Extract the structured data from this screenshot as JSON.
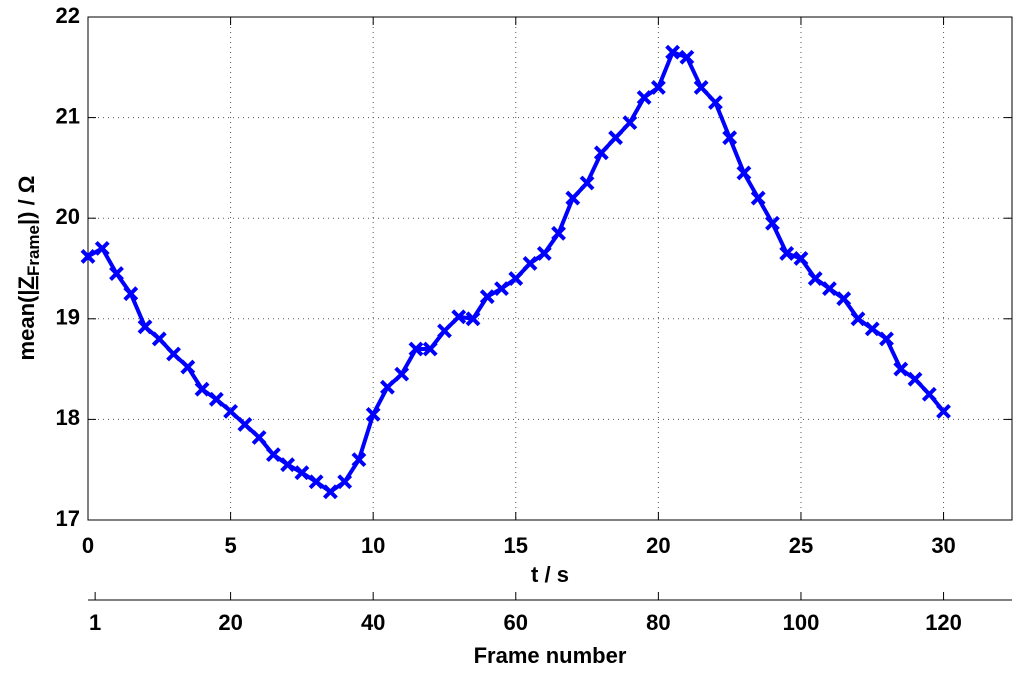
{
  "chart_data": {
    "type": "line",
    "x_label": "t / s",
    "y_label": {
      "start": "mean(|",
      "z": "Z",
      "sub": "Frame",
      "end": "|) / Ω"
    },
    "x2_label": "Frame number",
    "xlim": [
      0,
      32.4
    ],
    "xticks": [
      0,
      5,
      10,
      15,
      20,
      25,
      30
    ],
    "x2lim": [
      0,
      129.6
    ],
    "x2ticks": [
      1,
      20,
      40,
      60,
      80,
      100,
      120
    ],
    "ylim": [
      17,
      22
    ],
    "yticks": [
      17,
      18,
      19,
      20,
      21,
      22
    ],
    "grid": true,
    "x": [
      0,
      0.5,
      1,
      1.5,
      2,
      2.5,
      3,
      3.5,
      4,
      4.5,
      5,
      5.5,
      6,
      6.5,
      7,
      7.5,
      8,
      8.5,
      9,
      9.5,
      10,
      10.5,
      11,
      11.5,
      12,
      12.5,
      13,
      13.5,
      14,
      14.5,
      15,
      15.5,
      16,
      16.5,
      17,
      17.5,
      18,
      18.5,
      19,
      19.5,
      20,
      20.5,
      21,
      21.5,
      22,
      22.5,
      23,
      23.5,
      24,
      24.5,
      25,
      25.5,
      26,
      26.5,
      27,
      27.5,
      28,
      28.5,
      29,
      29.5,
      30
    ],
    "series": [
      {
        "color": "#0000ff",
        "values": [
          19.62,
          19.7,
          19.45,
          19.25,
          18.92,
          18.8,
          18.65,
          18.52,
          18.3,
          18.2,
          18.08,
          17.95,
          17.82,
          17.65,
          17.55,
          17.47,
          17.38,
          17.28,
          17.38,
          17.6,
          18.05,
          18.32,
          18.45,
          18.7,
          18.7,
          18.88,
          19.02,
          19.0,
          19.22,
          19.3,
          19.4,
          19.55,
          19.65,
          19.85,
          20.2,
          20.35,
          20.65,
          20.8,
          20.95,
          21.2,
          21.3,
          21.65,
          21.6,
          21.3,
          21.15,
          20.8,
          20.45,
          20.2,
          19.95,
          19.65,
          19.6,
          19.4,
          19.3,
          19.2,
          19.0,
          18.9,
          18.8,
          18.5,
          18.4,
          18.25,
          18.08
        ]
      }
    ]
  }
}
